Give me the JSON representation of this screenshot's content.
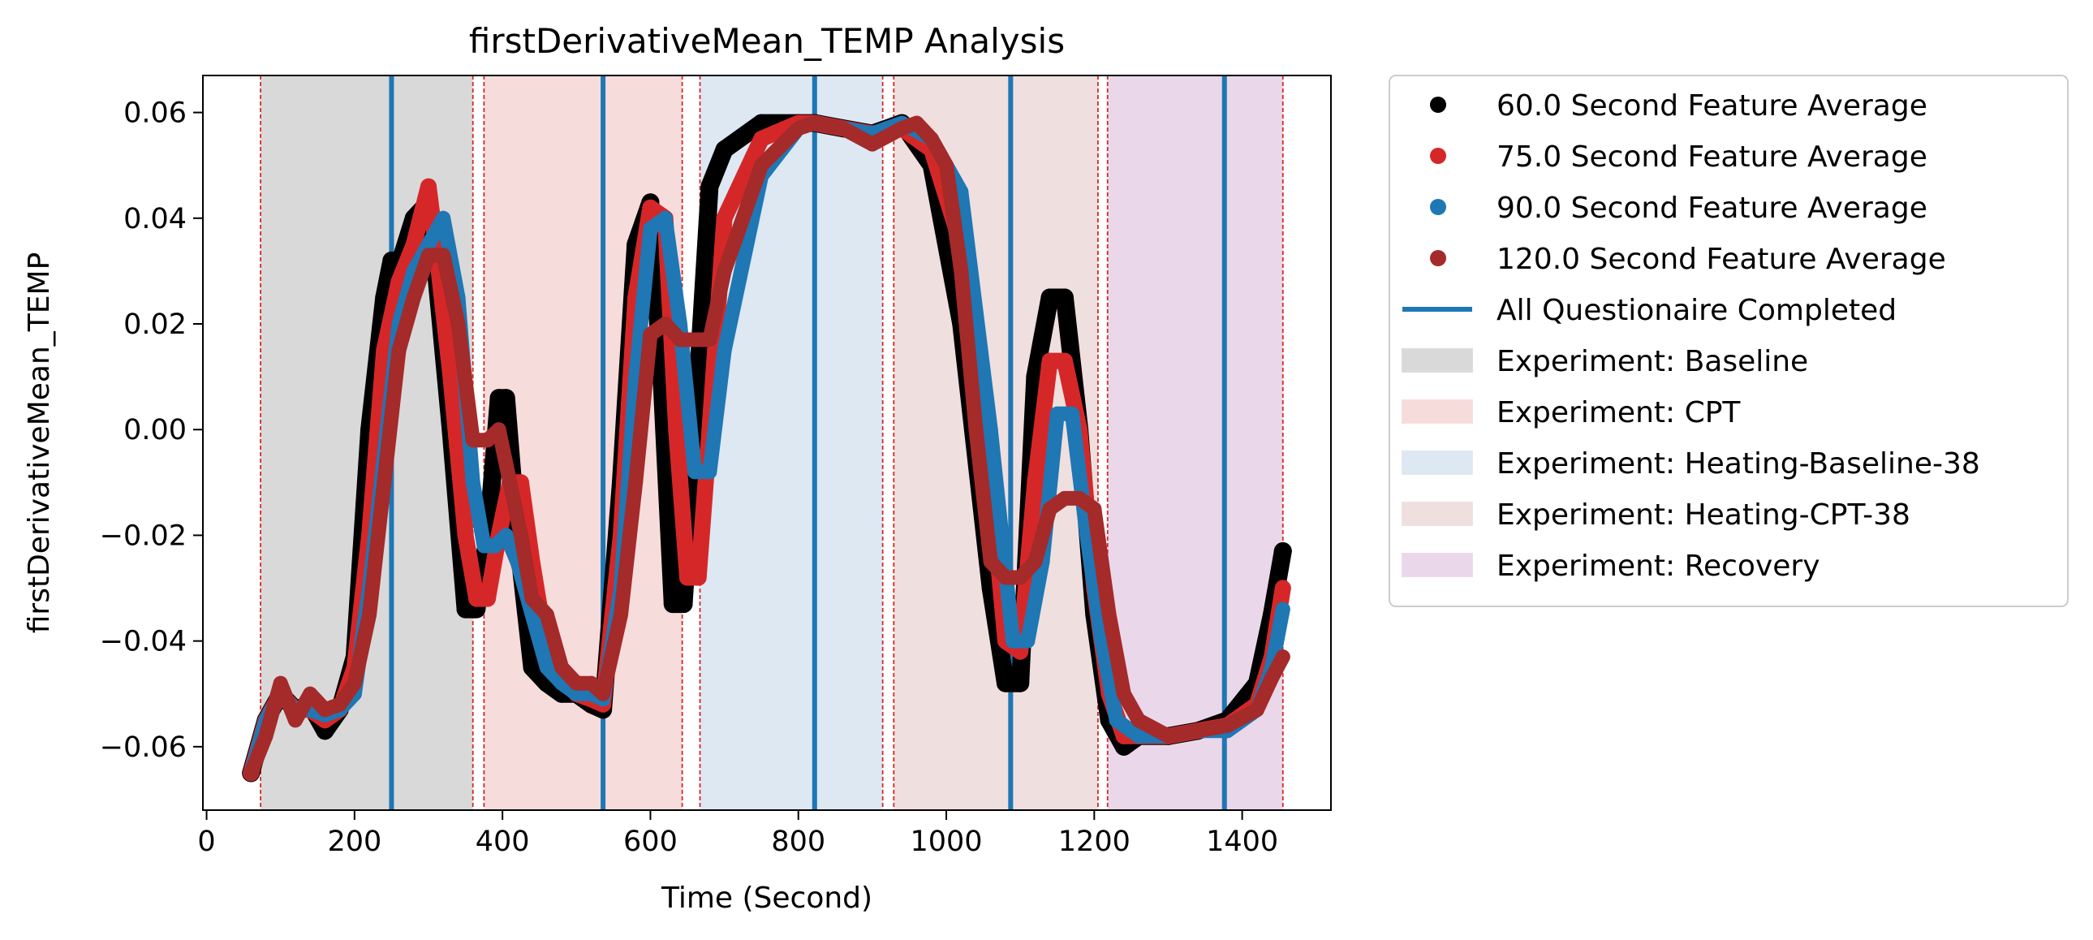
{
  "chart_data": {
    "type": "line",
    "title": "firstDerivativeMean_TEMP Analysis",
    "xlabel": "Time (Second)",
    "ylabel": "firstDerivativeMean_TEMP",
    "xlim": [
      -5,
      1520
    ],
    "ylim": [
      -0.072,
      0.067
    ],
    "xticks": [
      0,
      200,
      400,
      600,
      800,
      1000,
      1200,
      1400
    ],
    "xtick_labels": [
      "0",
      "200",
      "400",
      "600",
      "800",
      "1000",
      "1200",
      "1400"
    ],
    "yticks": [
      -0.06,
      -0.04,
      -0.02,
      0.0,
      0.02,
      0.04,
      0.06
    ],
    "ytick_labels": [
      "−0.06",
      "−0.04",
      "−0.02",
      "0.00",
      "0.02",
      "0.04",
      "0.06"
    ],
    "grid": false,
    "legend_position": "outside-right",
    "regions": [
      {
        "label": "Experiment: Baseline",
        "start": 73,
        "end": 360,
        "color": "#d9d9d9"
      },
      {
        "label": "Experiment: CPT",
        "start": 375,
        "end": 643,
        "color": "#f7dcdc"
      },
      {
        "label": "Experiment: Heating-Baseline-38",
        "start": 667,
        "end": 914,
        "color": "#dde8f3"
      },
      {
        "label": "Experiment: Heating-CPT-38",
        "start": 929,
        "end": 1205,
        "color": "#f0dfdf"
      },
      {
        "label": "Experiment: Recovery",
        "start": 1218,
        "end": 1455,
        "color": "#ead8ea"
      }
    ],
    "boundary_lines": [
      73,
      360,
      375,
      643,
      667,
      914,
      929,
      1205,
      1218,
      1455
    ],
    "questionnaire_lines": {
      "label": "All Questionaire Completed",
      "x": [
        250,
        536,
        822,
        1087,
        1376
      ],
      "color": "#1f77b4"
    },
    "series": [
      {
        "name": "60.0 Second Feature Average",
        "color": "#000000",
        "x": [
          60,
          80,
          100,
          120,
          140,
          160,
          180,
          200,
          220,
          240,
          250,
          260,
          280,
          300,
          310,
          330,
          350,
          365,
          380,
          395,
          405,
          420,
          440,
          460,
          480,
          500,
          520,
          536,
          560,
          580,
          600,
          615,
          630,
          645,
          660,
          680,
          700,
          750,
          800,
          822,
          860,
          900,
          940,
          980,
          1020,
          1060,
          1080,
          1100,
          1120,
          1140,
          1160,
          1180,
          1200,
          1220,
          1240,
          1260,
          1300,
          1340,
          1380,
          1420,
          1440,
          1455
        ],
        "y": [
          -0.065,
          -0.055,
          -0.05,
          -0.053,
          -0.052,
          -0.057,
          -0.053,
          -0.043,
          0.0,
          0.025,
          0.032,
          0.031,
          0.04,
          0.043,
          0.03,
          0.0,
          -0.034,
          -0.034,
          -0.02,
          0.006,
          0.006,
          -0.02,
          -0.045,
          -0.048,
          -0.05,
          -0.05,
          -0.052,
          -0.053,
          -0.01,
          0.035,
          0.043,
          0.01,
          -0.033,
          -0.033,
          0.0,
          0.046,
          0.053,
          0.058,
          0.058,
          0.058,
          0.057,
          0.056,
          0.058,
          0.05,
          0.02,
          -0.03,
          -0.048,
          -0.048,
          0.01,
          0.025,
          0.025,
          0.0,
          -0.035,
          -0.055,
          -0.06,
          -0.058,
          -0.058,
          -0.057,
          -0.055,
          -0.048,
          -0.035,
          -0.023
        ]
      },
      {
        "name": "75.0 Second Feature Average",
        "color": "#d62728",
        "x": [
          60,
          80,
          100,
          120,
          140,
          160,
          180,
          200,
          220,
          240,
          260,
          280,
          300,
          310,
          330,
          350,
          365,
          380,
          395,
          410,
          425,
          440,
          460,
          480,
          500,
          520,
          536,
          560,
          580,
          600,
          620,
          635,
          650,
          665,
          680,
          700,
          750,
          800,
          822,
          860,
          900,
          940,
          980,
          1020,
          1060,
          1080,
          1100,
          1120,
          1140,
          1160,
          1180,
          1200,
          1220,
          1240,
          1260,
          1300,
          1340,
          1380,
          1420,
          1440,
          1455
        ],
        "y": [
          -0.065,
          -0.055,
          -0.05,
          -0.053,
          -0.053,
          -0.055,
          -0.053,
          -0.045,
          -0.02,
          0.015,
          0.028,
          0.035,
          0.046,
          0.035,
          0.01,
          -0.02,
          -0.032,
          -0.032,
          -0.02,
          -0.01,
          -0.01,
          -0.025,
          -0.042,
          -0.047,
          -0.05,
          -0.051,
          -0.052,
          -0.02,
          0.025,
          0.042,
          0.04,
          0.0,
          -0.028,
          -0.028,
          0.0,
          0.04,
          0.055,
          0.058,
          0.058,
          0.057,
          0.056,
          0.057,
          0.053,
          0.035,
          -0.01,
          -0.04,
          -0.042,
          -0.01,
          0.013,
          0.013,
          0.0,
          -0.03,
          -0.05,
          -0.058,
          -0.058,
          -0.058,
          -0.057,
          -0.056,
          -0.052,
          -0.043,
          -0.03
        ]
      },
      {
        "name": "90.0 Second Feature Average",
        "color": "#1f77b4",
        "x": [
          60,
          80,
          100,
          120,
          140,
          160,
          180,
          200,
          220,
          240,
          260,
          280,
          300,
          320,
          340,
          360,
          375,
          390,
          405,
          420,
          440,
          460,
          480,
          500,
          520,
          536,
          560,
          580,
          600,
          620,
          640,
          660,
          680,
          700,
          750,
          800,
          822,
          860,
          900,
          940,
          980,
          1020,
          1060,
          1090,
          1110,
          1130,
          1150,
          1170,
          1190,
          1210,
          1230,
          1260,
          1300,
          1340,
          1380,
          1420,
          1440,
          1455
        ],
        "y": [
          -0.065,
          -0.055,
          -0.05,
          -0.053,
          -0.053,
          -0.054,
          -0.053,
          -0.05,
          -0.03,
          -0.005,
          0.02,
          0.03,
          0.035,
          0.04,
          0.025,
          -0.01,
          -0.022,
          -0.022,
          -0.02,
          -0.025,
          -0.035,
          -0.045,
          -0.048,
          -0.05,
          -0.05,
          -0.051,
          -0.03,
          0.01,
          0.038,
          0.04,
          0.02,
          -0.008,
          -0.008,
          0.015,
          0.048,
          0.057,
          0.058,
          0.057,
          0.056,
          0.058,
          0.055,
          0.045,
          0.0,
          -0.04,
          -0.04,
          -0.025,
          0.003,
          0.003,
          -0.02,
          -0.04,
          -0.055,
          -0.058,
          -0.058,
          -0.057,
          -0.057,
          -0.053,
          -0.045,
          -0.034
        ]
      },
      {
        "name": "120.0 Second Feature Average",
        "color": "#a52a2a",
        "x": [
          60,
          80,
          100,
          120,
          140,
          160,
          180,
          200,
          220,
          240,
          260,
          280,
          300,
          320,
          340,
          360,
          380,
          395,
          410,
          425,
          440,
          460,
          480,
          500,
          520,
          536,
          560,
          580,
          600,
          620,
          640,
          660,
          680,
          700,
          750,
          800,
          822,
          860,
          900,
          940,
          960,
          980,
          1000,
          1020,
          1040,
          1060,
          1080,
          1100,
          1120,
          1140,
          1160,
          1180,
          1200,
          1220,
          1240,
          1260,
          1300,
          1340,
          1380,
          1420,
          1440,
          1455
        ],
        "y": [
          -0.065,
          -0.058,
          -0.048,
          -0.055,
          -0.05,
          -0.053,
          -0.052,
          -0.048,
          -0.035,
          -0.01,
          0.015,
          0.025,
          0.033,
          0.033,
          0.02,
          -0.002,
          -0.002,
          0.0,
          -0.01,
          -0.02,
          -0.032,
          -0.035,
          -0.045,
          -0.048,
          -0.048,
          -0.05,
          -0.035,
          -0.01,
          0.018,
          0.02,
          0.017,
          0.017,
          0.017,
          0.03,
          0.05,
          0.057,
          0.058,
          0.057,
          0.054,
          0.057,
          0.058,
          0.055,
          0.05,
          0.03,
          0.0,
          -0.025,
          -0.028,
          -0.028,
          -0.025,
          -0.015,
          -0.013,
          -0.013,
          -0.015,
          -0.035,
          -0.05,
          -0.055,
          -0.058,
          -0.057,
          -0.056,
          -0.053,
          -0.047,
          -0.043
        ]
      }
    ]
  }
}
